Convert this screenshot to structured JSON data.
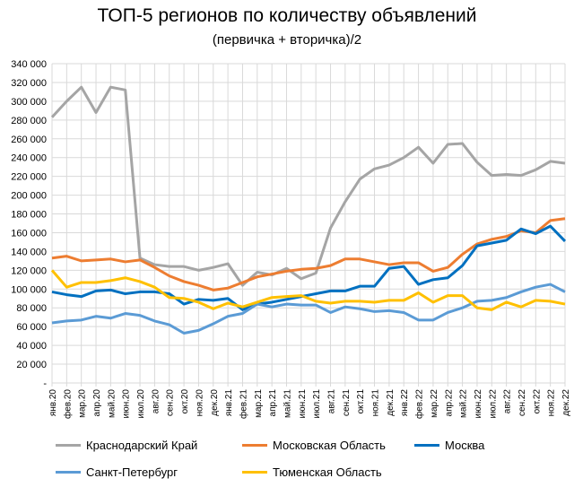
{
  "chart_data": {
    "type": "line",
    "title": "ТОП-5 регионов по количеству объявлений",
    "subtitle": "(первичка + вторичка)/2",
    "xlabel": "",
    "ylabel": "",
    "ylim": [
      0,
      340000
    ],
    "yticks": [
      0,
      20000,
      40000,
      60000,
      80000,
      100000,
      120000,
      140000,
      160000,
      180000,
      200000,
      220000,
      240000,
      260000,
      280000,
      300000,
      320000,
      340000
    ],
    "ytick_labels": [
      "-",
      "20 000",
      "40 000",
      "60 000",
      "80 000",
      "100 000",
      "120 000",
      "140 000",
      "160 000",
      "180 000",
      "200 000",
      "220 000",
      "240 000",
      "260 000",
      "280 000",
      "300 000",
      "320 000",
      "340 000"
    ],
    "grid": true,
    "legend_position": "bottom",
    "categories": [
      "янв.20",
      "фев.20",
      "мар.20",
      "апр.20",
      "май.20",
      "июн.20",
      "июл.20",
      "авг.20",
      "сен.20",
      "окт.20",
      "ноя.20",
      "дек.20",
      "янв.21",
      "фев.21",
      "мар.21",
      "апр.21",
      "май.21",
      "июн.21",
      "июл.21",
      "авг.21",
      "сен.21",
      "окт.21",
      "ноя.21",
      "дек.21",
      "янв.22",
      "фев.22",
      "мар.22",
      "апр.22",
      "май.22",
      "июн.22",
      "июл.22",
      "авг.22",
      "сен.22",
      "окт.22",
      "ноя.22",
      "дек.22"
    ],
    "series": [
      {
        "name": "Краснодарский Край",
        "color": "#A5A5A5",
        "values": [
          283000,
          300000,
          315000,
          288000,
          315000,
          312000,
          133000,
          126000,
          124000,
          124000,
          120000,
          123000,
          127000,
          104000,
          118000,
          115000,
          122000,
          111000,
          117000,
          165000,
          193000,
          217000,
          228000,
          232000,
          240000,
          251000,
          234000,
          254000,
          255000,
          235000,
          221000,
          222000,
          221000,
          227000,
          236000,
          234000
        ]
      },
      {
        "name": "Московская Область",
        "color": "#ED7D31",
        "values": [
          133000,
          135000,
          130000,
          131000,
          132000,
          129000,
          131000,
          123000,
          114000,
          108000,
          104000,
          99000,
          101000,
          107000,
          113000,
          116000,
          119000,
          121000,
          122000,
          125000,
          132000,
          132000,
          129000,
          126000,
          128000,
          128000,
          119000,
          123000,
          137000,
          148000,
          153000,
          156000,
          162000,
          160000,
          173000,
          175000
        ]
      },
      {
        "name": "Москва",
        "color": "#0070C0",
        "values": [
          97000,
          94000,
          92000,
          98000,
          99000,
          95000,
          97000,
          97000,
          95000,
          84000,
          89000,
          88000,
          90000,
          78000,
          84000,
          86000,
          89000,
          92000,
          95000,
          98000,
          98000,
          103000,
          103000,
          122000,
          124000,
          105000,
          110000,
          112000,
          125000,
          146000,
          149000,
          152000,
          164000,
          159000,
          167000,
          151000
        ]
      },
      {
        "name": "Санкт-Петербург",
        "color": "#5B9BD5",
        "values": [
          64000,
          66000,
          67000,
          71000,
          69000,
          74000,
          72000,
          66000,
          62000,
          53000,
          56000,
          63000,
          71000,
          74000,
          84000,
          81000,
          84000,
          83000,
          83000,
          75000,
          81000,
          79000,
          76000,
          77000,
          75000,
          67000,
          67000,
          75000,
          80000,
          87000,
          88000,
          91000,
          97000,
          102000,
          105000,
          97000
        ]
      },
      {
        "name": "Тюменская Область",
        "color": "#FFC000",
        "values": [
          120000,
          102000,
          107000,
          107000,
          109000,
          112000,
          108000,
          102000,
          91000,
          90000,
          86000,
          79000,
          85000,
          81000,
          86000,
          91000,
          92000,
          93000,
          87000,
          85000,
          87000,
          87000,
          86000,
          88000,
          88000,
          96000,
          86000,
          93000,
          93000,
          80000,
          78000,
          86000,
          81000,
          88000,
          87000,
          84000
        ]
      }
    ]
  }
}
